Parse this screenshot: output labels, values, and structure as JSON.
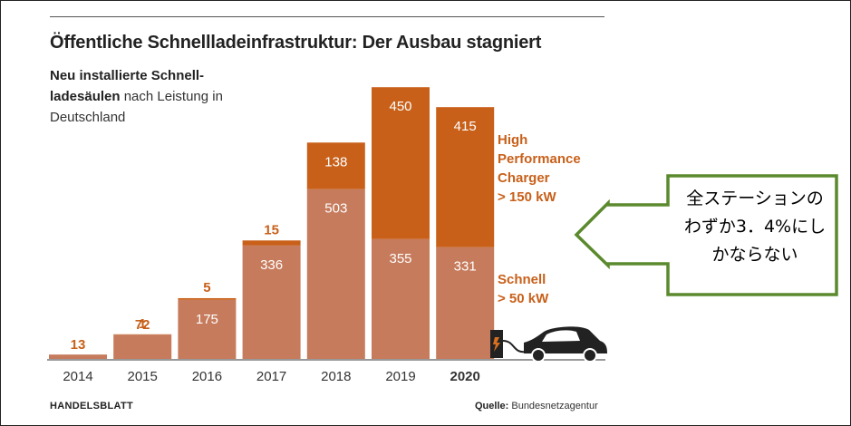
{
  "chart_data": {
    "type": "bar",
    "stacked": true,
    "title": "Öffentliche Schnellladeinfrastruktur: Der Ausbau stagniert",
    "subtitle_bold": "Neu installierte Schnell-ladesäulen",
    "subtitle_rest": " nach Leistung in Deutschland",
    "categories": [
      "2014",
      "2015",
      "2016",
      "2017",
      "2018",
      "2019",
      "2020"
    ],
    "highlight_category": "2020",
    "series": [
      {
        "name": "Schnell > 50 kW",
        "color": "#c67b5c",
        "values": [
          13,
          72,
          175,
          336,
          503,
          355,
          331
        ]
      },
      {
        "name": "High Performance Charger > 150 kW",
        "color": "#c8601a",
        "values": [
          0,
          1,
          5,
          15,
          138,
          450,
          415
        ]
      }
    ],
    "labels": {
      "schnell": [
        "13",
        "72",
        "175",
        "336",
        "503",
        "355",
        "331"
      ],
      "high": [
        "",
        "1",
        "5",
        "15",
        "138",
        "450",
        "415"
      ]
    },
    "ylim": [
      0,
      870
    ],
    "legend": {
      "high": [
        "High",
        "Performance",
        "Charger",
        "> 150 kW"
      ],
      "schnell": [
        "Schnell",
        "> 50 kW"
      ]
    },
    "publisher": "HANDELSBLATT",
    "source_prefix": "Quelle:",
    "source_name": "Bundesnetzagentur"
  },
  "callout": {
    "lines": [
      "全ステーションの",
      "わずか3．4%にし",
      "かならない"
    ],
    "border_color": "#5b8a2e"
  }
}
